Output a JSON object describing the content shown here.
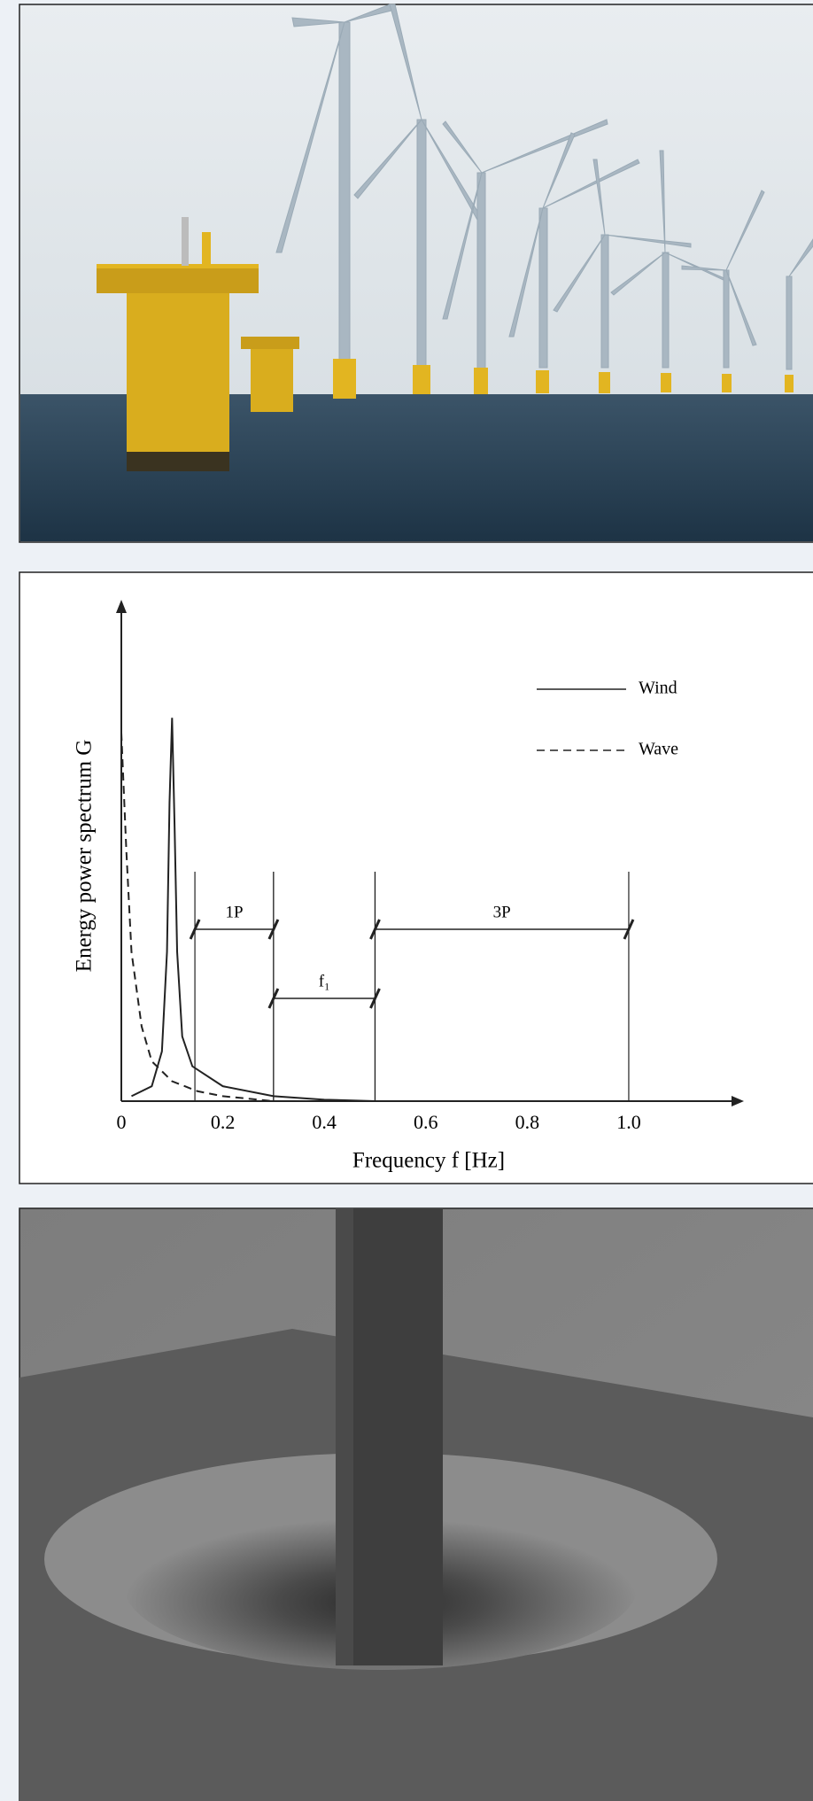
{
  "chart_data": {
    "type": "line",
    "x_label": "Frequency f [Hz]",
    "y_label": "Energy power spectrum G",
    "xlim": [
      0,
      1.22
    ],
    "ylim": [
      0,
      1
    ],
    "xticks": [
      0,
      0.2,
      0.4,
      0.6,
      0.8,
      {
        "value": 1,
        "label": "1.0"
      }
    ],
    "legend": "upper right",
    "series": [
      {
        "name": "Wind",
        "color": "#222222",
        "dash": "solid",
        "x": [
          0.02,
          0.06,
          0.08,
          0.09,
          0.095,
          0.1,
          0.105,
          0.11,
          0.12,
          0.14,
          0.2,
          0.3,
          0.4,
          0.5
        ],
        "values": [
          0.01,
          0.03,
          0.1,
          0.3,
          0.6,
          0.77,
          0.55,
          0.3,
          0.13,
          0.07,
          0.03,
          0.01,
          0.003,
          0
        ]
      },
      {
        "name": "Wave",
        "color": "#222222",
        "dash": "dashed",
        "x": [
          0,
          0.01,
          0.02,
          0.04,
          0.06,
          0.1,
          0.15,
          0.2,
          0.3
        ],
        "values": [
          0.74,
          0.5,
          0.3,
          0.15,
          0.08,
          0.04,
          0.02,
          0.01,
          0
        ]
      }
    ],
    "bands": [
      {
        "label": "1P",
        "range": [
          0.145,
          0.3
        ]
      },
      {
        "label": "f₁",
        "range": [
          0.3,
          0.5
        ]
      },
      {
        "label": "3P",
        "range": [
          0.5,
          1.0
        ]
      }
    ]
  }
}
